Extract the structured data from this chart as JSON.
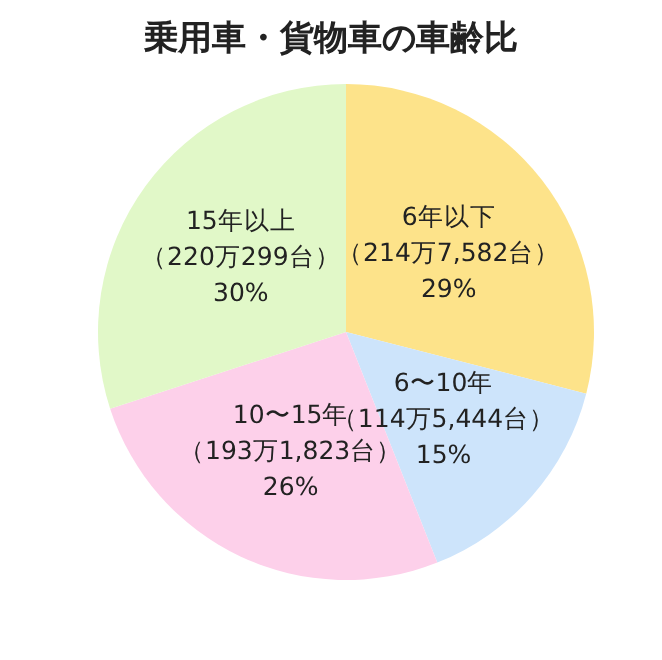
{
  "chart_data": {
    "type": "pie",
    "title": "乗用車・貨物車の車齢比",
    "categories": [
      "6年以下",
      "6〜10年",
      "10〜15年",
      "15年以上"
    ],
    "values": [
      29,
      15,
      26,
      30
    ],
    "value_labels": [
      "（214万7,582台）\n29%",
      "（114万5,444台）\n15%",
      "（193万1,823台）\n26%",
      "（220万299台）\n30%"
    ],
    "colors": [
      "#fde38a",
      "#cde4fb",
      "#fdd0ea",
      "#e1f8c8"
    ],
    "legend": false
  }
}
